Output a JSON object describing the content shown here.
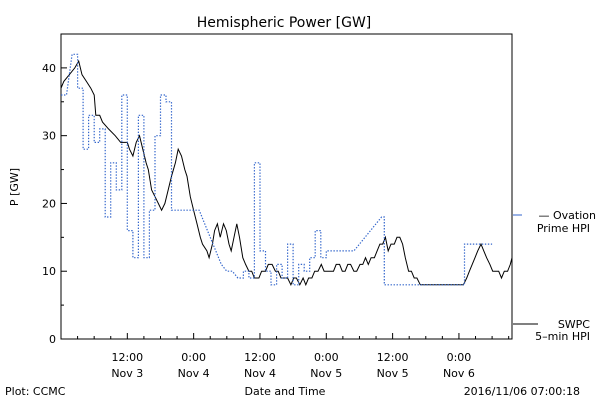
{
  "chart_data": {
    "type": "line",
    "title": "Hemispheric Power [GW]",
    "xlabel": "Date and Time",
    "ylabel": "P [GW]",
    "ylim": [
      0,
      45
    ],
    "xlim": [
      "2016-11-03 00:00",
      "2016-11-06 07:00"
    ],
    "grid": false,
    "y_ticks": [
      0,
      10,
      20,
      30,
      40
    ],
    "x_ticks": [
      {
        "t": 12,
        "time": "12:00",
        "date": "Nov 3"
      },
      {
        "t": 24,
        "time": "0:00",
        "date": "Nov 4"
      },
      {
        "t": 36,
        "time": "12:00",
        "date": "Nov 4"
      },
      {
        "t": 48,
        "time": "0:00",
        "date": "Nov 5"
      },
      {
        "t": 60,
        "time": "12:00",
        "date": "Nov 5"
      },
      {
        "t": 72,
        "time": "0:00",
        "date": "Nov 6"
      }
    ],
    "series": [
      {
        "name": "SWPC 5-min HPI",
        "color": "#000000",
        "style": "solid",
        "points": [
          [
            0.0,
            37
          ],
          [
            0.5,
            38
          ],
          [
            1.5,
            39
          ],
          [
            2.5,
            40
          ],
          [
            3.2,
            41
          ],
          [
            3.8,
            39
          ],
          [
            4.6,
            38
          ],
          [
            5.4,
            37
          ],
          [
            6.0,
            36
          ],
          [
            6.3,
            33
          ],
          [
            7.0,
            33
          ],
          [
            7.5,
            32
          ],
          [
            8.6,
            31
          ],
          [
            9.8,
            30
          ],
          [
            10.8,
            29
          ],
          [
            12.0,
            29
          ],
          [
            12.4,
            28
          ],
          [
            13.0,
            27
          ],
          [
            13.6,
            29
          ],
          [
            14.2,
            30
          ],
          [
            14.8,
            28
          ],
          [
            15.4,
            26
          ],
          [
            15.8,
            25
          ],
          [
            16.4,
            22
          ],
          [
            17.0,
            21
          ],
          [
            17.6,
            20
          ],
          [
            18.2,
            19
          ],
          [
            18.8,
            20
          ],
          [
            19.4,
            22
          ],
          [
            20.0,
            24
          ],
          [
            20.7,
            26
          ],
          [
            21.2,
            28
          ],
          [
            21.8,
            27
          ],
          [
            22.4,
            25
          ],
          [
            22.8,
            24
          ],
          [
            23.4,
            21
          ],
          [
            24.0,
            19
          ],
          [
            24.6,
            17
          ],
          [
            25.2,
            15
          ],
          [
            25.6,
            14
          ],
          [
            26.4,
            13
          ],
          [
            26.8,
            12
          ],
          [
            27.4,
            14
          ],
          [
            27.8,
            16
          ],
          [
            28.3,
            17
          ],
          [
            28.8,
            15
          ],
          [
            29.4,
            17
          ],
          [
            29.9,
            16
          ],
          [
            30.4,
            14
          ],
          [
            30.8,
            13
          ],
          [
            31.3,
            15
          ],
          [
            31.8,
            17
          ],
          [
            32.3,
            15
          ],
          [
            32.9,
            12
          ],
          [
            33.4,
            11
          ],
          [
            34.0,
            10
          ],
          [
            34.5,
            10
          ],
          [
            35.0,
            9
          ],
          [
            35.8,
            9
          ],
          [
            36.3,
            10
          ],
          [
            37.0,
            10
          ],
          [
            37.5,
            11
          ],
          [
            38.2,
            11
          ],
          [
            38.8,
            10
          ],
          [
            39.3,
            10
          ],
          [
            39.8,
            9
          ],
          [
            40.4,
            9
          ],
          [
            41.0,
            9
          ],
          [
            41.6,
            8
          ],
          [
            42.1,
            9
          ],
          [
            42.6,
            9
          ],
          [
            43.2,
            8
          ],
          [
            43.8,
            9
          ],
          [
            44.3,
            8
          ],
          [
            44.8,
            9
          ],
          [
            45.4,
            9
          ],
          [
            45.9,
            10
          ],
          [
            46.5,
            10
          ],
          [
            47.1,
            11
          ],
          [
            47.6,
            10
          ],
          [
            48.2,
            10
          ],
          [
            48.8,
            10
          ],
          [
            49.3,
            10
          ],
          [
            49.8,
            11
          ],
          [
            50.4,
            11
          ],
          [
            50.9,
            10
          ],
          [
            51.4,
            10
          ],
          [
            51.9,
            11
          ],
          [
            52.4,
            11
          ],
          [
            53.0,
            10
          ],
          [
            53.5,
            10
          ],
          [
            54.1,
            11
          ],
          [
            54.6,
            11
          ],
          [
            55.1,
            12
          ],
          [
            55.6,
            11
          ],
          [
            56.1,
            12
          ],
          [
            56.7,
            12
          ],
          [
            57.2,
            13
          ],
          [
            57.7,
            14
          ],
          [
            58.2,
            14
          ],
          [
            58.7,
            15
          ],
          [
            59.2,
            13
          ],
          [
            59.7,
            14
          ],
          [
            60.3,
            14
          ],
          [
            60.8,
            15
          ],
          [
            61.3,
            15
          ],
          [
            61.8,
            14
          ],
          [
            62.3,
            12
          ],
          [
            62.9,
            10
          ],
          [
            63.4,
            10
          ],
          [
            63.9,
            9
          ],
          [
            64.4,
            9
          ],
          [
            65.0,
            8
          ],
          [
            66.0,
            8
          ],
          [
            67.0,
            8
          ],
          [
            68.0,
            8
          ],
          [
            69.0,
            8
          ],
          [
            70.0,
            8
          ],
          [
            71.0,
            8
          ],
          [
            72.0,
            8
          ],
          [
            72.8,
            8
          ],
          [
            73.4,
            9
          ],
          [
            73.9,
            10
          ],
          [
            74.4,
            11
          ],
          [
            74.9,
            12
          ],
          [
            75.4,
            13
          ],
          [
            76.0,
            14
          ],
          [
            76.5,
            13
          ],
          [
            77.0,
            12
          ],
          [
            77.6,
            11
          ],
          [
            78.1,
            10
          ],
          [
            78.6,
            10
          ],
          [
            79.2,
            10
          ],
          [
            79.7,
            9
          ],
          [
            80.2,
            10
          ],
          [
            80.8,
            10
          ],
          [
            81.3,
            11
          ],
          [
            81.6,
            12
          ]
        ]
      },
      {
        "name": "Ovation Prime HPI",
        "color": "#3366cc",
        "style": "dotted",
        "points": [
          [
            0,
            36
          ],
          [
            1,
            36
          ],
          [
            2,
            42
          ],
          [
            3,
            42
          ],
          [
            3,
            37
          ],
          [
            4,
            37
          ],
          [
            4,
            28
          ],
          [
            5,
            28
          ],
          [
            5,
            33
          ],
          [
            6,
            33
          ],
          [
            6,
            29
          ],
          [
            7,
            29
          ],
          [
            7,
            31
          ],
          [
            8,
            31
          ],
          [
            8,
            18
          ],
          [
            9,
            18
          ],
          [
            9,
            26
          ],
          [
            10,
            26
          ],
          [
            10,
            22
          ],
          [
            11,
            22
          ],
          [
            11,
            36
          ],
          [
            12,
            36
          ],
          [
            12,
            16
          ],
          [
            13,
            16
          ],
          [
            13,
            12
          ],
          [
            14,
            12
          ],
          [
            14,
            33
          ],
          [
            15,
            33
          ],
          [
            15,
            12
          ],
          [
            16,
            12
          ],
          [
            16,
            19
          ],
          [
            17,
            19
          ],
          [
            17,
            30
          ],
          [
            18,
            30
          ],
          [
            18,
            36
          ],
          [
            19,
            36
          ],
          [
            19,
            35
          ],
          [
            20,
            35
          ],
          [
            20,
            19
          ],
          [
            25,
            19
          ],
          [
            26,
            17
          ],
          [
            27,
            15
          ],
          [
            28,
            13
          ],
          [
            29,
            11
          ],
          [
            30,
            10
          ],
          [
            31,
            10
          ],
          [
            32,
            9
          ],
          [
            33,
            9
          ],
          [
            33,
            10
          ],
          [
            34,
            10
          ],
          [
            34,
            9
          ],
          [
            35,
            9
          ],
          [
            35,
            26
          ],
          [
            36,
            26
          ],
          [
            36,
            13
          ],
          [
            37,
            13
          ],
          [
            37,
            10
          ],
          [
            38,
            10
          ],
          [
            38,
            8
          ],
          [
            39,
            8
          ],
          [
            39,
            11
          ],
          [
            40,
            11
          ],
          [
            40,
            9
          ],
          [
            41,
            9
          ],
          [
            41,
            14
          ],
          [
            42,
            14
          ],
          [
            42,
            8
          ],
          [
            43,
            8
          ],
          [
            43,
            11
          ],
          [
            44,
            11
          ],
          [
            44,
            10
          ],
          [
            45,
            10
          ],
          [
            45,
            12
          ],
          [
            46,
            12
          ],
          [
            46,
            16
          ],
          [
            47,
            16
          ],
          [
            47,
            12
          ],
          [
            48,
            12
          ],
          [
            48,
            13
          ],
          [
            53,
            13
          ],
          [
            54,
            14
          ],
          [
            55,
            15
          ],
          [
            56,
            16
          ],
          [
            57,
            17
          ],
          [
            58,
            18
          ],
          [
            58.5,
            18
          ],
          [
            58.5,
            8
          ],
          [
            73,
            8
          ],
          [
            73,
            14
          ],
          [
            78,
            14
          ]
        ]
      }
    ],
    "legend": {
      "placement": "right",
      "entries": [
        {
          "line1": "— Ovation",
          "line2": "Prime HPI",
          "color": "#3366cc"
        },
        {
          "line1": "SWPC",
          "line2": "5–min HPI",
          "color": "#000000"
        }
      ]
    },
    "footer_left": "Plot: CCMC",
    "footer_right": "2016/11/06 07:00:18"
  }
}
